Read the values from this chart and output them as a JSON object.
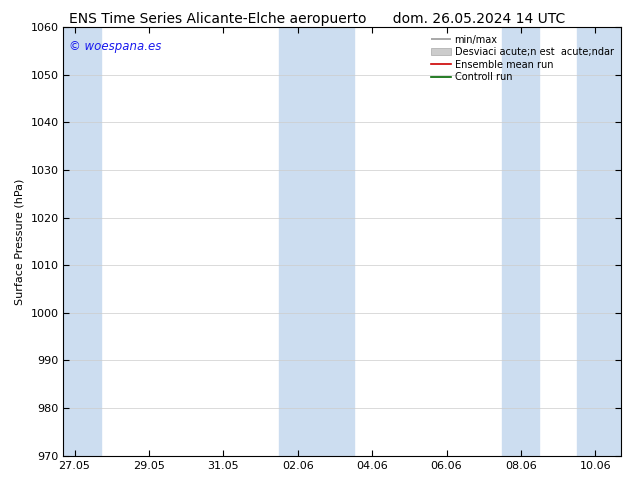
{
  "title_left": "ENS Time Series Alicante-Elche aeropuerto",
  "title_right": "dom. 26.05.2024 14 UTC",
  "ylabel": "Surface Pressure (hPa)",
  "ylim": [
    970,
    1060
  ],
  "yticks": [
    970,
    980,
    990,
    1000,
    1010,
    1020,
    1030,
    1040,
    1050,
    1060
  ],
  "xtick_labels": [
    "27.05",
    "29.05",
    "31.05",
    "02.06",
    "04.06",
    "06.06",
    "08.06",
    "10.06"
  ],
  "xtick_positions": [
    0,
    2,
    4,
    6,
    8,
    10,
    12,
    14
  ],
  "xlim": [
    -0.3,
    14.7
  ],
  "watermark": "© woespana.es",
  "watermark_color": "#1a1aee",
  "bg_color": "#ffffff",
  "plot_bg_color": "#ffffff",
  "shaded_bands": [
    {
      "x_start": -0.3,
      "x_end": 0.7,
      "color": "#ccddf0"
    },
    {
      "x_start": 5.5,
      "x_end": 6.5,
      "color": "#ccddf0"
    },
    {
      "x_start": 6.5,
      "x_end": 7.5,
      "color": "#ccddf0"
    },
    {
      "x_start": 11.5,
      "x_end": 12.5,
      "color": "#ccddf0"
    },
    {
      "x_start": 13.5,
      "x_end": 14.7,
      "color": "#ccddf0"
    }
  ],
  "legend_label_minmax": "min/max",
  "legend_label_std": "Desviaci acute;n est  acute;ndar",
  "legend_label_ensemble": "Ensemble mean run",
  "legend_label_control": "Controll run",
  "title_fontsize": 10,
  "axis_fontsize": 8,
  "tick_fontsize": 8,
  "legend_fontsize": 7,
  "grid_color": "#cccccc",
  "spine_color": "#000000",
  "shade_color": "#ccddf0"
}
